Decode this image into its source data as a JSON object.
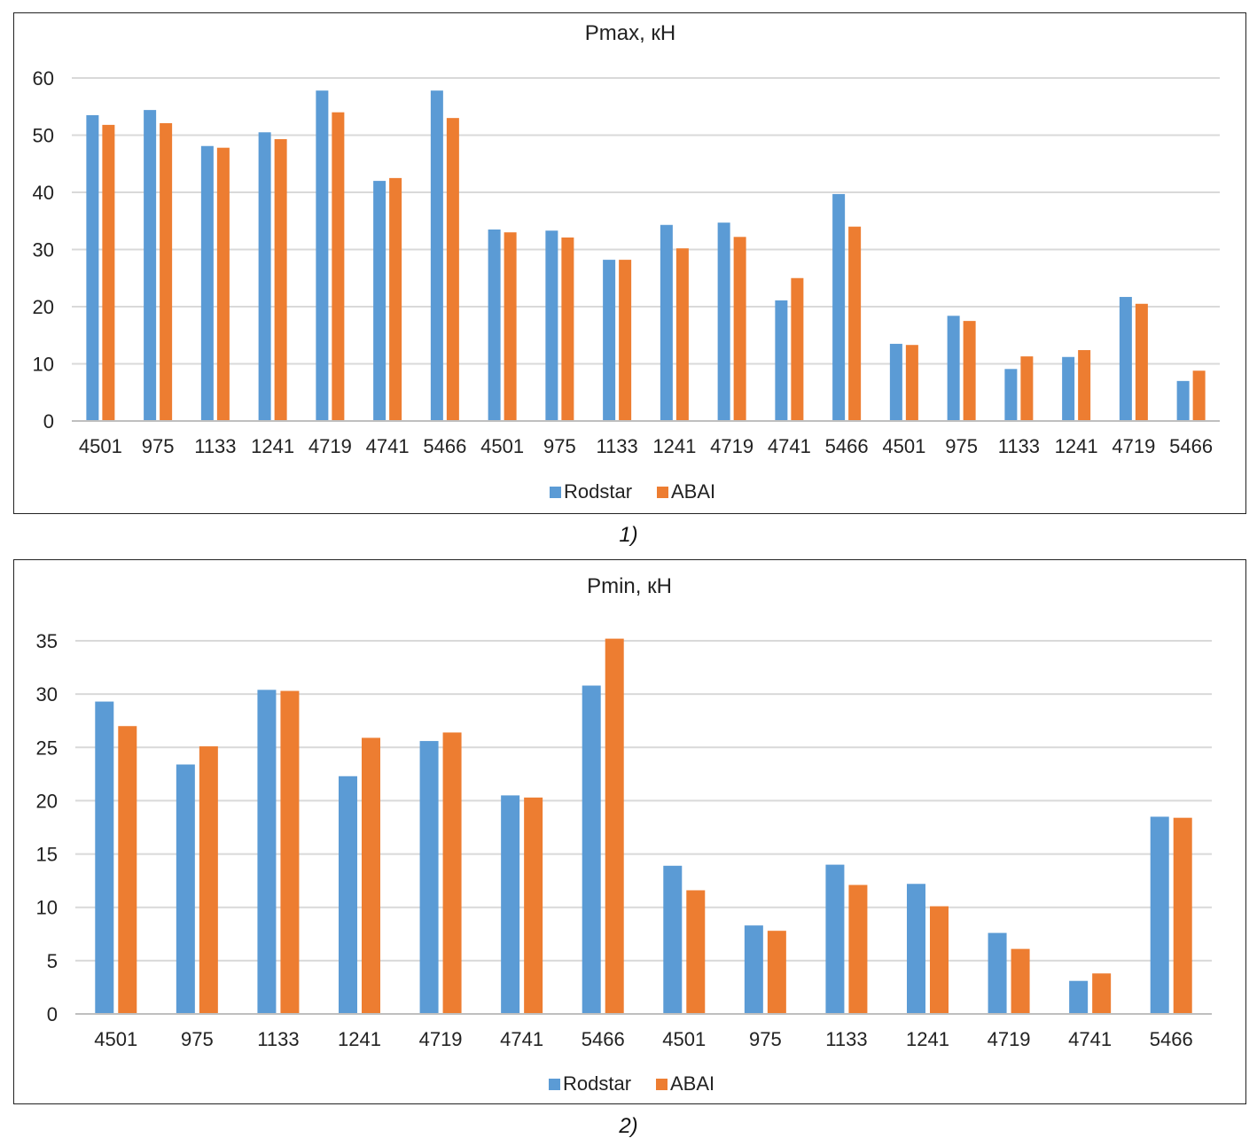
{
  "colors": {
    "Rodstar": "#5b9bd5",
    "ABAI": "#ed7d31",
    "grid": "#d9d9d9",
    "axis": "#bfbfbf"
  },
  "captions": [
    "1)",
    "2)"
  ],
  "chart_data": [
    {
      "type": "bar",
      "title": "Pmax, кН",
      "xlabel": "",
      "ylabel": "",
      "ylim": [
        0,
        60
      ],
      "yticks": [
        0,
        10,
        20,
        30,
        40,
        50,
        60
      ],
      "grid": true,
      "legend": "bottom-center",
      "categories": [
        "4501",
        "975",
        "1133",
        "1241",
        "4719",
        "4741",
        "5466",
        "4501",
        "975",
        "1133",
        "1241",
        "4719",
        "4741",
        "5466",
        "4501",
        "975",
        "1133",
        "1241",
        "4719",
        "5466"
      ],
      "series": [
        {
          "name": "Rodstar",
          "values": [
            53.5,
            54.4,
            48.1,
            50.5,
            57.8,
            42.0,
            57.8,
            33.5,
            33.3,
            28.2,
            34.3,
            34.7,
            21.1,
            39.7,
            13.5,
            18.4,
            9.1,
            11.2,
            21.7,
            7.0
          ]
        },
        {
          "name": "ABAI",
          "values": [
            51.8,
            52.1,
            47.8,
            49.3,
            54.0,
            42.5,
            53.0,
            33.0,
            32.1,
            28.2,
            30.2,
            32.2,
            25.0,
            34.0,
            13.3,
            17.5,
            11.3,
            12.4,
            20.5,
            8.8
          ]
        }
      ]
    },
    {
      "type": "bar",
      "title": "Pmin, кН",
      "xlabel": "",
      "ylabel": "",
      "ylim": [
        0,
        35
      ],
      "yticks": [
        0,
        5,
        10,
        15,
        20,
        25,
        30,
        35
      ],
      "grid": true,
      "legend": "bottom-center",
      "categories": [
        "4501",
        "975",
        "1133",
        "1241",
        "4719",
        "4741",
        "5466",
        "4501",
        "975",
        "1133",
        "1241",
        "4719",
        "4741",
        "5466"
      ],
      "series": [
        {
          "name": "Rodstar",
          "values": [
            29.3,
            23.4,
            30.4,
            22.3,
            25.6,
            20.5,
            30.8,
            13.9,
            8.3,
            14.0,
            12.2,
            7.6,
            3.1,
            18.5
          ]
        },
        {
          "name": "ABAI",
          "values": [
            27.0,
            25.1,
            30.3,
            25.9,
            26.4,
            20.3,
            35.2,
            11.6,
            7.8,
            12.1,
            10.1,
            6.1,
            3.8,
            18.4
          ]
        }
      ]
    }
  ]
}
